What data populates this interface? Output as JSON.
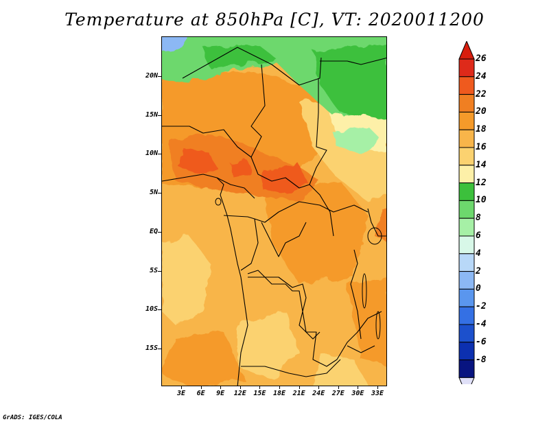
{
  "title": "Temperature at 850hPa [C], VT: 2020011200",
  "credit": "GrADS: IGES/COLA",
  "lat_labels": [
    "20N",
    "15N",
    "10N",
    "5N",
    "EQ",
    "5S",
    "10S",
    "15S"
  ],
  "lon_labels": [
    "3E",
    "6E",
    "9E",
    "12E",
    "15E",
    "18E",
    "21E",
    "24E",
    "27E",
    "30E",
    "33E"
  ],
  "colorbar_labels": [
    "26",
    "24",
    "22",
    "20",
    "18",
    "16",
    "14",
    "12",
    "10",
    "8",
    "6",
    "4",
    "2",
    "0",
    "-2",
    "-4",
    "-6",
    "-8"
  ],
  "colorbar_colors": [
    "#de2a1a",
    "#ef5a1e",
    "#f07f22",
    "#f59a2a",
    "#f8b54a",
    "#fbd270",
    "#fdf0a8",
    "#3cc03c",
    "#6dd86d",
    "#a6f0a6",
    "#d8f8e8",
    "#b8d8f8",
    "#8cb8f4",
    "#5a96ee",
    "#3470e4",
    "#1c50cc",
    "#0c30b0",
    "#081480"
  ],
  "colorbar_ends": {
    "top": "#d81e0e",
    "bottom": "#e0e0f8"
  }
}
